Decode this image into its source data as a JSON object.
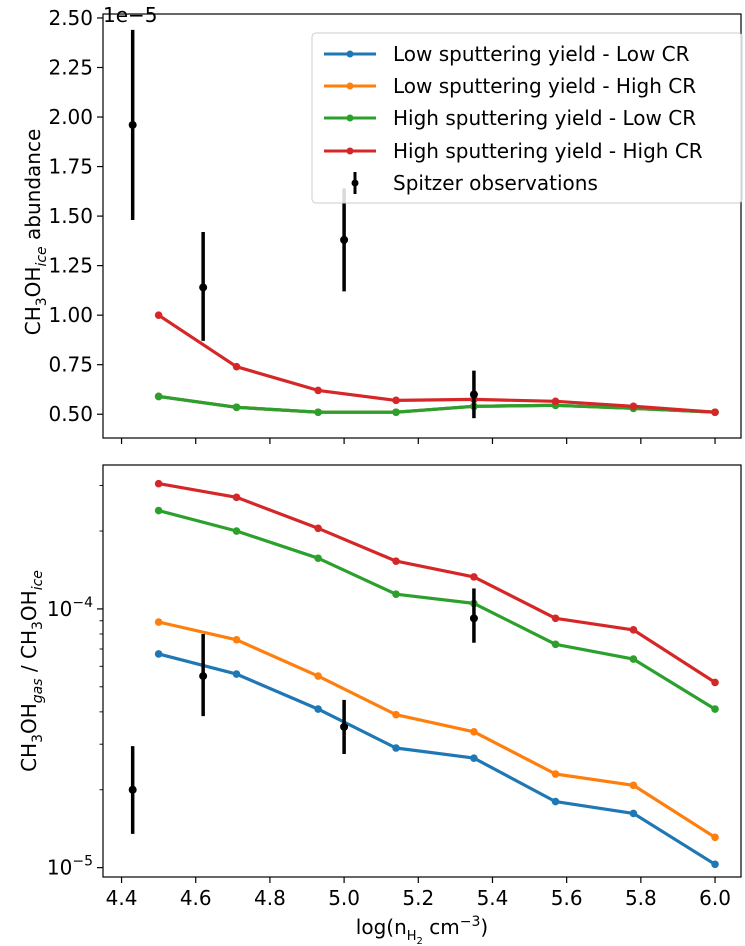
{
  "chart_data": [
    {
      "type": "line",
      "panel": "top",
      "ylabel_main": "CH",
      "ylabel_sub1": "3",
      "ylabel_mid": "OH",
      "ylabel_sub2": "ice",
      "ylabel_tail": " abundance",
      "offset_base": "1e",
      "offset_exp": "−5",
      "xlim": [
        4.35,
        6.07
      ],
      "ylim": [
        0.38,
        2.52
      ],
      "yscale": "linear",
      "yticks": [
        0.5,
        0.75,
        1.0,
        1.25,
        1.5,
        1.75,
        2.0,
        2.25,
        2.5
      ],
      "ytick_labels": [
        "0.50",
        "0.75",
        "1.00",
        "1.25",
        "1.50",
        "1.75",
        "2.00",
        "2.25",
        "2.50"
      ],
      "x": [
        4.5,
        4.71,
        4.93,
        5.14,
        5.35,
        5.57,
        5.78,
        6.0
      ],
      "series": [
        {
          "name": "Low sputtering yield - Low CR",
          "color": "#1f77b4",
          "values": [
            0.59,
            0.535,
            0.51,
            0.51,
            0.54,
            0.545,
            0.53,
            0.51
          ]
        },
        {
          "name": "Low sputtering yield - High CR",
          "color": "#ff7f0e",
          "values": [
            0.59,
            0.535,
            0.51,
            0.51,
            0.54,
            0.545,
            0.53,
            0.51
          ]
        },
        {
          "name": "High sputtering yield - Low CR",
          "color": "#2ca02c",
          "values": [
            0.59,
            0.535,
            0.51,
            0.51,
            0.54,
            0.545,
            0.53,
            0.51
          ]
        },
        {
          "name": "High sputtering yield - High CR",
          "color": "#d62728",
          "values": [
            1.0,
            0.74,
            0.62,
            0.57,
            0.575,
            0.565,
            0.54,
            0.51
          ]
        }
      ],
      "observations": {
        "name": "Spitzer observations",
        "color": "#000000",
        "x": [
          4.43,
          4.62,
          5.0,
          5.35
        ],
        "y": [
          1.96,
          1.14,
          1.38,
          0.6
        ],
        "lo": [
          1.48,
          0.87,
          1.12,
          0.48
        ],
        "hi": [
          2.44,
          1.42,
          1.64,
          0.72
        ]
      },
      "legend": "upper right"
    },
    {
      "type": "line",
      "panel": "bottom",
      "ylabel_main": "CH",
      "ylabel_sub1": "3",
      "ylabel_mid": "OH",
      "ylabel_sub2": "gas",
      "ylabel_sep": " / CH",
      "ylabel_sub3": "3",
      "ylabel_mid2": "OH",
      "ylabel_sub4": "ice",
      "xlabel_main": "log(n",
      "xlabel_sub": "H",
      "xlabel_subsub": "2",
      "xlabel_unit": " cm",
      "xlabel_exp": "−3",
      "xlabel_close": ")",
      "xlim": [
        4.35,
        6.07
      ],
      "ylim": [
        9.2e-06,
        0.00036
      ],
      "yscale": "log",
      "ytick_base": "10",
      "ytick_exps": [
        "−4",
        "−5"
      ],
      "yticks": [
        0.0001,
        1e-05
      ],
      "xticks": [
        4.4,
        4.6,
        4.8,
        5.0,
        5.2,
        5.4,
        5.6,
        5.8,
        6.0
      ],
      "xtick_labels": [
        "4.4",
        "4.6",
        "4.8",
        "5.0",
        "5.2",
        "5.4",
        "5.6",
        "5.8",
        "6.0"
      ],
      "x": [
        4.5,
        4.71,
        4.93,
        5.14,
        5.35,
        5.57,
        5.78,
        6.0
      ],
      "series": [
        {
          "name": "Low sputtering yield - Low CR",
          "color": "#1f77b4",
          "values": [
            6.7e-05,
            5.6e-05,
            4.1e-05,
            2.9e-05,
            2.65e-05,
            1.8e-05,
            1.62e-05,
            1.03e-05
          ]
        },
        {
          "name": "Low sputtering yield - High CR",
          "color": "#ff7f0e",
          "values": [
            8.9e-05,
            7.6e-05,
            5.5e-05,
            3.9e-05,
            3.35e-05,
            2.3e-05,
            2.08e-05,
            1.31e-05
          ]
        },
        {
          "name": "High sputtering yield - Low CR",
          "color": "#2ca02c",
          "values": [
            0.00024,
            0.0002,
            0.000157,
            0.000114,
            0.000105,
            7.3e-05,
            6.4e-05,
            4.1e-05
          ]
        },
        {
          "name": "High sputtering yield - High CR",
          "color": "#d62728",
          "values": [
            0.000305,
            0.00027,
            0.000205,
            0.000153,
            0.000133,
            9.2e-05,
            8.3e-05,
            5.2e-05
          ]
        }
      ],
      "observations": {
        "name": "Spitzer observations",
        "color": "#000000",
        "x": [
          4.43,
          4.62,
          5.0,
          5.35
        ],
        "y": [
          2e-05,
          5.5e-05,
          3.5e-05,
          9.2e-05
        ],
        "lo": [
          1.35e-05,
          3.85e-05,
          2.75e-05,
          7.4e-05
        ],
        "hi": [
          2.95e-05,
          8e-05,
          4.45e-05,
          0.00012
        ]
      }
    }
  ]
}
